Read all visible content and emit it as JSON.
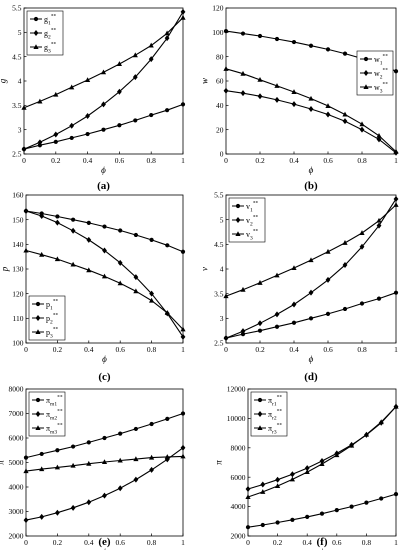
{
  "chart_data": [
    {
      "type": "line",
      "panel": "(a)",
      "xlabel": "ϕ",
      "ylabel": "g",
      "xlim": [
        0,
        1
      ],
      "ylim": [
        2.5,
        5.5
      ],
      "xticks": [
        "0",
        "0.2",
        "0.4",
        "0.6",
        "0.8",
        "1"
      ],
      "yticks": [
        "2.5",
        "3",
        "3.5",
        "4",
        "4.5",
        "5",
        "5.5"
      ],
      "legend_position": "top-left",
      "x": [
        0,
        0.1,
        0.2,
        0.3,
        0.4,
        0.5,
        0.6,
        0.7,
        0.8,
        0.9,
        1.0
      ],
      "series": [
        {
          "name": "g",
          "sub": "1",
          "sup": "**",
          "marker": "circle",
          "values": [
            2.6,
            2.68,
            2.75,
            2.83,
            2.91,
            3.0,
            3.09,
            3.19,
            3.3,
            3.4,
            3.52
          ]
        },
        {
          "name": "g",
          "sub": "2",
          "sup": "**",
          "marker": "diamond",
          "values": [
            2.6,
            2.74,
            2.9,
            3.08,
            3.28,
            3.52,
            3.78,
            4.08,
            4.45,
            4.88,
            5.42
          ]
        },
        {
          "name": "g",
          "sub": "3",
          "sup": "**",
          "marker": "triangle",
          "values": [
            3.45,
            3.58,
            3.72,
            3.87,
            4.02,
            4.18,
            4.35,
            4.53,
            4.73,
            4.98,
            5.3
          ]
        }
      ]
    },
    {
      "type": "line",
      "panel": "(b)",
      "xlabel": "ϕ",
      "ylabel": "w",
      "xlim": [
        0,
        1
      ],
      "ylim": [
        0,
        120
      ],
      "xticks": [
        "0",
        "0.2",
        "0.4",
        "0.6",
        "0.8",
        "1"
      ],
      "yticks": [
        "0",
        "20",
        "40",
        "60",
        "80",
        "100",
        "120"
      ],
      "legend_position": "center-right",
      "x": [
        0,
        0.1,
        0.2,
        0.3,
        0.4,
        0.5,
        0.6,
        0.7,
        0.8,
        0.9,
        1.0
      ],
      "series": [
        {
          "name": "w",
          "sub": "1",
          "sup": "**",
          "marker": "circle",
          "values": [
            101,
            99,
            97,
            94.5,
            92,
            89,
            86,
            82.5,
            78.5,
            74,
            68
          ]
        },
        {
          "name": "w",
          "sub": "2",
          "sup": "**",
          "marker": "diamond",
          "values": [
            52,
            50,
            47.5,
            44.5,
            41,
            37,
            32.5,
            27,
            20,
            12,
            1
          ]
        },
        {
          "name": "w",
          "sub": "3",
          "sup": "**",
          "marker": "triangle",
          "values": [
            70,
            66,
            61,
            56,
            51,
            45.5,
            39.5,
            32.5,
            24.5,
            15,
            2
          ]
        }
      ]
    },
    {
      "type": "line",
      "panel": "(c)",
      "xlabel": "ϕ",
      "ylabel": "p",
      "xlim": [
        0,
        1
      ],
      "ylim": [
        100,
        160
      ],
      "xticks": [
        "0",
        "0.2",
        "0.4",
        "0.6",
        "0.8",
        "1"
      ],
      "yticks": [
        "100",
        "110",
        "120",
        "130",
        "140",
        "150",
        "160"
      ],
      "legend_position": "bottom-left",
      "x": [
        0,
        0.1,
        0.2,
        0.3,
        0.4,
        0.5,
        0.6,
        0.7,
        0.8,
        0.9,
        1.0
      ],
      "series": [
        {
          "name": "p",
          "sub": "1",
          "sup": "**",
          "marker": "circle",
          "values": [
            153.5,
            152.5,
            151.3,
            150,
            148.7,
            147.2,
            145.6,
            143.8,
            141.8,
            139.6,
            137
          ]
        },
        {
          "name": "p",
          "sub": "2",
          "sup": "**",
          "marker": "diamond",
          "values": [
            153.5,
            151.5,
            148.8,
            145.5,
            141.8,
            137.5,
            132.5,
            126.7,
            120,
            112,
            102.5
          ]
        },
        {
          "name": "p",
          "sub": "3",
          "sup": "**",
          "marker": "triangle",
          "values": [
            137.5,
            135.8,
            134,
            131.8,
            129.5,
            127,
            124.2,
            121,
            117.2,
            112.2,
            105.5
          ]
        }
      ]
    },
    {
      "type": "line",
      "panel": "(d)",
      "xlabel": "ϕ",
      "ylabel": "v",
      "xlim": [
        0,
        1
      ],
      "ylim": [
        2.5,
        5.5
      ],
      "xticks": [
        "0",
        "0.2",
        "0.4",
        "0.6",
        "0.8",
        "1"
      ],
      "yticks": [
        "2.5",
        "3",
        "3.5",
        "4",
        "4.5",
        "5",
        "5.5"
      ],
      "legend_position": "top-left",
      "x": [
        0,
        0.1,
        0.2,
        0.3,
        0.4,
        0.5,
        0.6,
        0.7,
        0.8,
        0.9,
        1.0
      ],
      "series": [
        {
          "name": "v",
          "sub": "1",
          "sup": "**",
          "marker": "circle",
          "values": [
            2.6,
            2.68,
            2.75,
            2.83,
            2.91,
            3.0,
            3.09,
            3.19,
            3.3,
            3.4,
            3.52
          ]
        },
        {
          "name": "v",
          "sub": "2",
          "sup": "**",
          "marker": "diamond",
          "values": [
            2.6,
            2.74,
            2.9,
            3.08,
            3.28,
            3.52,
            3.78,
            4.08,
            4.45,
            4.88,
            5.42
          ]
        },
        {
          "name": "v",
          "sub": "3",
          "sup": "**",
          "marker": "triangle",
          "values": [
            3.45,
            3.58,
            3.72,
            3.87,
            4.02,
            4.18,
            4.35,
            4.53,
            4.73,
            4.98,
            5.3
          ]
        }
      ]
    },
    {
      "type": "line",
      "panel": "(e)",
      "xlabel": "ϕ",
      "ylabel": "π",
      "xlim": [
        0,
        1
      ],
      "ylim": [
        2000,
        8000
      ],
      "xticks": [
        "0",
        "0.2",
        "0.4",
        "0.6",
        "0.8",
        "1"
      ],
      "yticks": [
        "2000",
        "3000",
        "4000",
        "5000",
        "6000",
        "7000",
        "8000"
      ],
      "legend_position": "top-left",
      "x": [
        0,
        0.1,
        0.2,
        0.3,
        0.4,
        0.5,
        0.6,
        0.7,
        0.8,
        0.9,
        1.0
      ],
      "series": [
        {
          "name": "π",
          "sub": "m1",
          "sup": "**",
          "marker": "circle",
          "values": [
            5200,
            5350,
            5500,
            5650,
            5820,
            6000,
            6180,
            6370,
            6570,
            6780,
            7000
          ]
        },
        {
          "name": "π",
          "sub": "m2",
          "sup": "**",
          "marker": "diamond",
          "values": [
            2650,
            2780,
            2950,
            3150,
            3380,
            3650,
            3950,
            4300,
            4700,
            5130,
            5600
          ]
        },
        {
          "name": "π",
          "sub": "m3",
          "sup": "**",
          "marker": "triangle",
          "values": [
            4650,
            4730,
            4800,
            4870,
            4950,
            5020,
            5080,
            5140,
            5200,
            5230,
            5250
          ]
        }
      ]
    },
    {
      "type": "line",
      "panel": "(f)",
      "xlabel": "ϕ",
      "ylabel": "π",
      "xlim": [
        0,
        1
      ],
      "ylim": [
        2000,
        12000
      ],
      "xticks": [
        "0",
        "0.2",
        "0.4",
        "0.6",
        "0.8",
        "1"
      ],
      "yticks": [
        "2000",
        "4000",
        "6000",
        "8000",
        "10000",
        "12000"
      ],
      "legend_position": "top-left",
      "x": [
        0,
        0.1,
        0.2,
        0.3,
        0.4,
        0.5,
        0.6,
        0.7,
        0.8,
        0.9,
        1.0
      ],
      "series": [
        {
          "name": "π",
          "sub": "r1",
          "sup": "**",
          "marker": "circle",
          "values": [
            2600,
            2750,
            2920,
            3100,
            3300,
            3520,
            3760,
            4000,
            4270,
            4550,
            4850
          ]
        },
        {
          "name": "π",
          "sub": "r2",
          "sup": "**",
          "marker": "diamond",
          "values": [
            5200,
            5500,
            5830,
            6200,
            6620,
            7100,
            7620,
            8200,
            8880,
            9700,
            10800
          ]
        },
        {
          "name": "π",
          "sub": "r3",
          "sup": "**",
          "marker": "triangle",
          "values": [
            4650,
            5000,
            5400,
            5850,
            6350,
            6900,
            7500,
            8150,
            8900,
            9750,
            10800
          ]
        }
      ]
    }
  ]
}
